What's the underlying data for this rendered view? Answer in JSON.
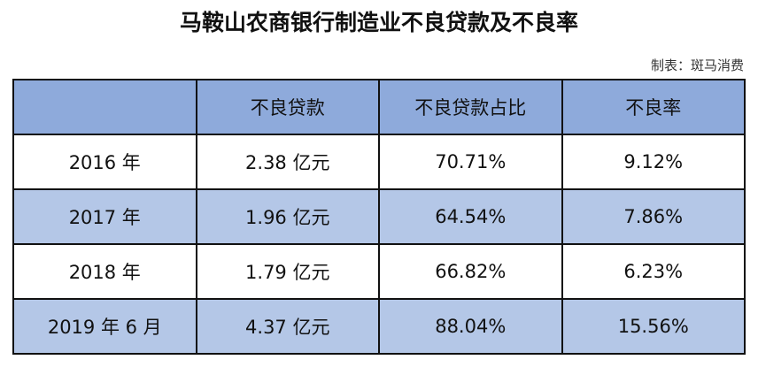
{
  "title": "马鞍山农商银行制造业不良贷款及不良率",
  "source": "制表：斑马消费",
  "table": {
    "header": [
      "不良贷款",
      "不良贷款占比",
      "不良率"
    ],
    "rows": [
      [
        "2016 年",
        "2.38 亿元",
        "70.71%",
        "9.12%"
      ],
      [
        "2017 年",
        "1.96 亿元",
        "64.54%",
        "7.86%"
      ],
      [
        "2018 年",
        "1.79 亿元",
        "66.82%",
        "6.23%"
      ],
      [
        "2019 年 6 月",
        "4.37 亿元",
        "88.04%",
        "15.56%"
      ]
    ]
  }
}
